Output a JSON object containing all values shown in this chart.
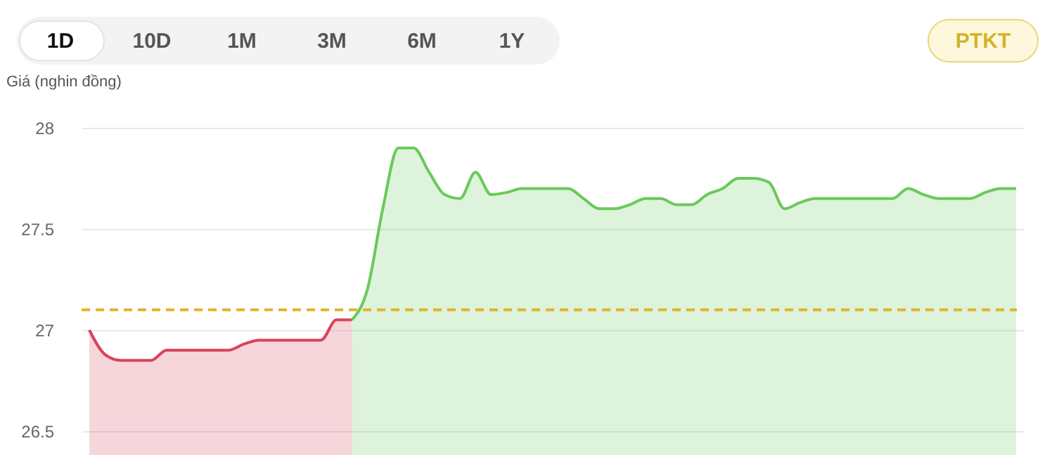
{
  "chart_data": {
    "type": "area",
    "ylabel": "Giá (nghin đồng)",
    "annotations": [
      "1D",
      "10D",
      "1M",
      "3M",
      "6M",
      "1Y",
      "PTKT"
    ],
    "categories": [
      null,
      null,
      null,
      null,
      null,
      null,
      null,
      null,
      null,
      null,
      null,
      null,
      null,
      null,
      null,
      null,
      null,
      null,
      null,
      null,
      null,
      null,
      null,
      null,
      null,
      null,
      null,
      null,
      null,
      null,
      null,
      null,
      null,
      null,
      null,
      null,
      null,
      null,
      null,
      null,
      null,
      null,
      null,
      null,
      null,
      null,
      null,
      null,
      null,
      null,
      null,
      null,
      null,
      null,
      null,
      null,
      null,
      null,
      null,
      null,
      null
    ],
    "series": [
      {
        "color": "#d9435a",
        "values": [
          27.0,
          26.88,
          26.85,
          26.85,
          26.85,
          26.9,
          26.9,
          26.9,
          26.9,
          26.9,
          26.93,
          26.95,
          26.95,
          26.95,
          26.95,
          26.95,
          27.05,
          27.05,
          null,
          null,
          null,
          null,
          null,
          null,
          null,
          null,
          null,
          null,
          null,
          null,
          null,
          null,
          null,
          null,
          null,
          null,
          null,
          null,
          null,
          null,
          null,
          null,
          null,
          null,
          null,
          null,
          null,
          null,
          null,
          null,
          null,
          null,
          null,
          null,
          null,
          null,
          null,
          null,
          null,
          null,
          null
        ]
      },
      {
        "color": "#6ac95a",
        "values": [
          null,
          null,
          null,
          null,
          null,
          null,
          null,
          null,
          null,
          null,
          null,
          null,
          null,
          null,
          null,
          null,
          null,
          27.05,
          27.2,
          27.6,
          27.9,
          27.9,
          27.78,
          27.67,
          27.65,
          27.78,
          27.67,
          27.68,
          27.7,
          27.7,
          27.7,
          27.7,
          27.65,
          27.6,
          27.6,
          27.62,
          27.65,
          27.65,
          27.62,
          27.62,
          27.67,
          27.7,
          27.75,
          27.75,
          27.73,
          27.6,
          27.63,
          27.65,
          27.65,
          27.65,
          27.65,
          27.65,
          27.65,
          27.7,
          27.67,
          27.65,
          27.65,
          27.65,
          27.68,
          27.7,
          27.7
        ]
      }
    ],
    "ref_lines": [
      {
        "axis": "y",
        "value": 27.1,
        "color": "#e0b52a",
        "line_style": "dashed"
      }
    ],
    "ylim": [
      26.5,
      28
    ],
    "yticks": [
      26.5,
      27,
      27.5,
      28
    ],
    "grid": "y",
    "tick_labels": "y"
  }
}
